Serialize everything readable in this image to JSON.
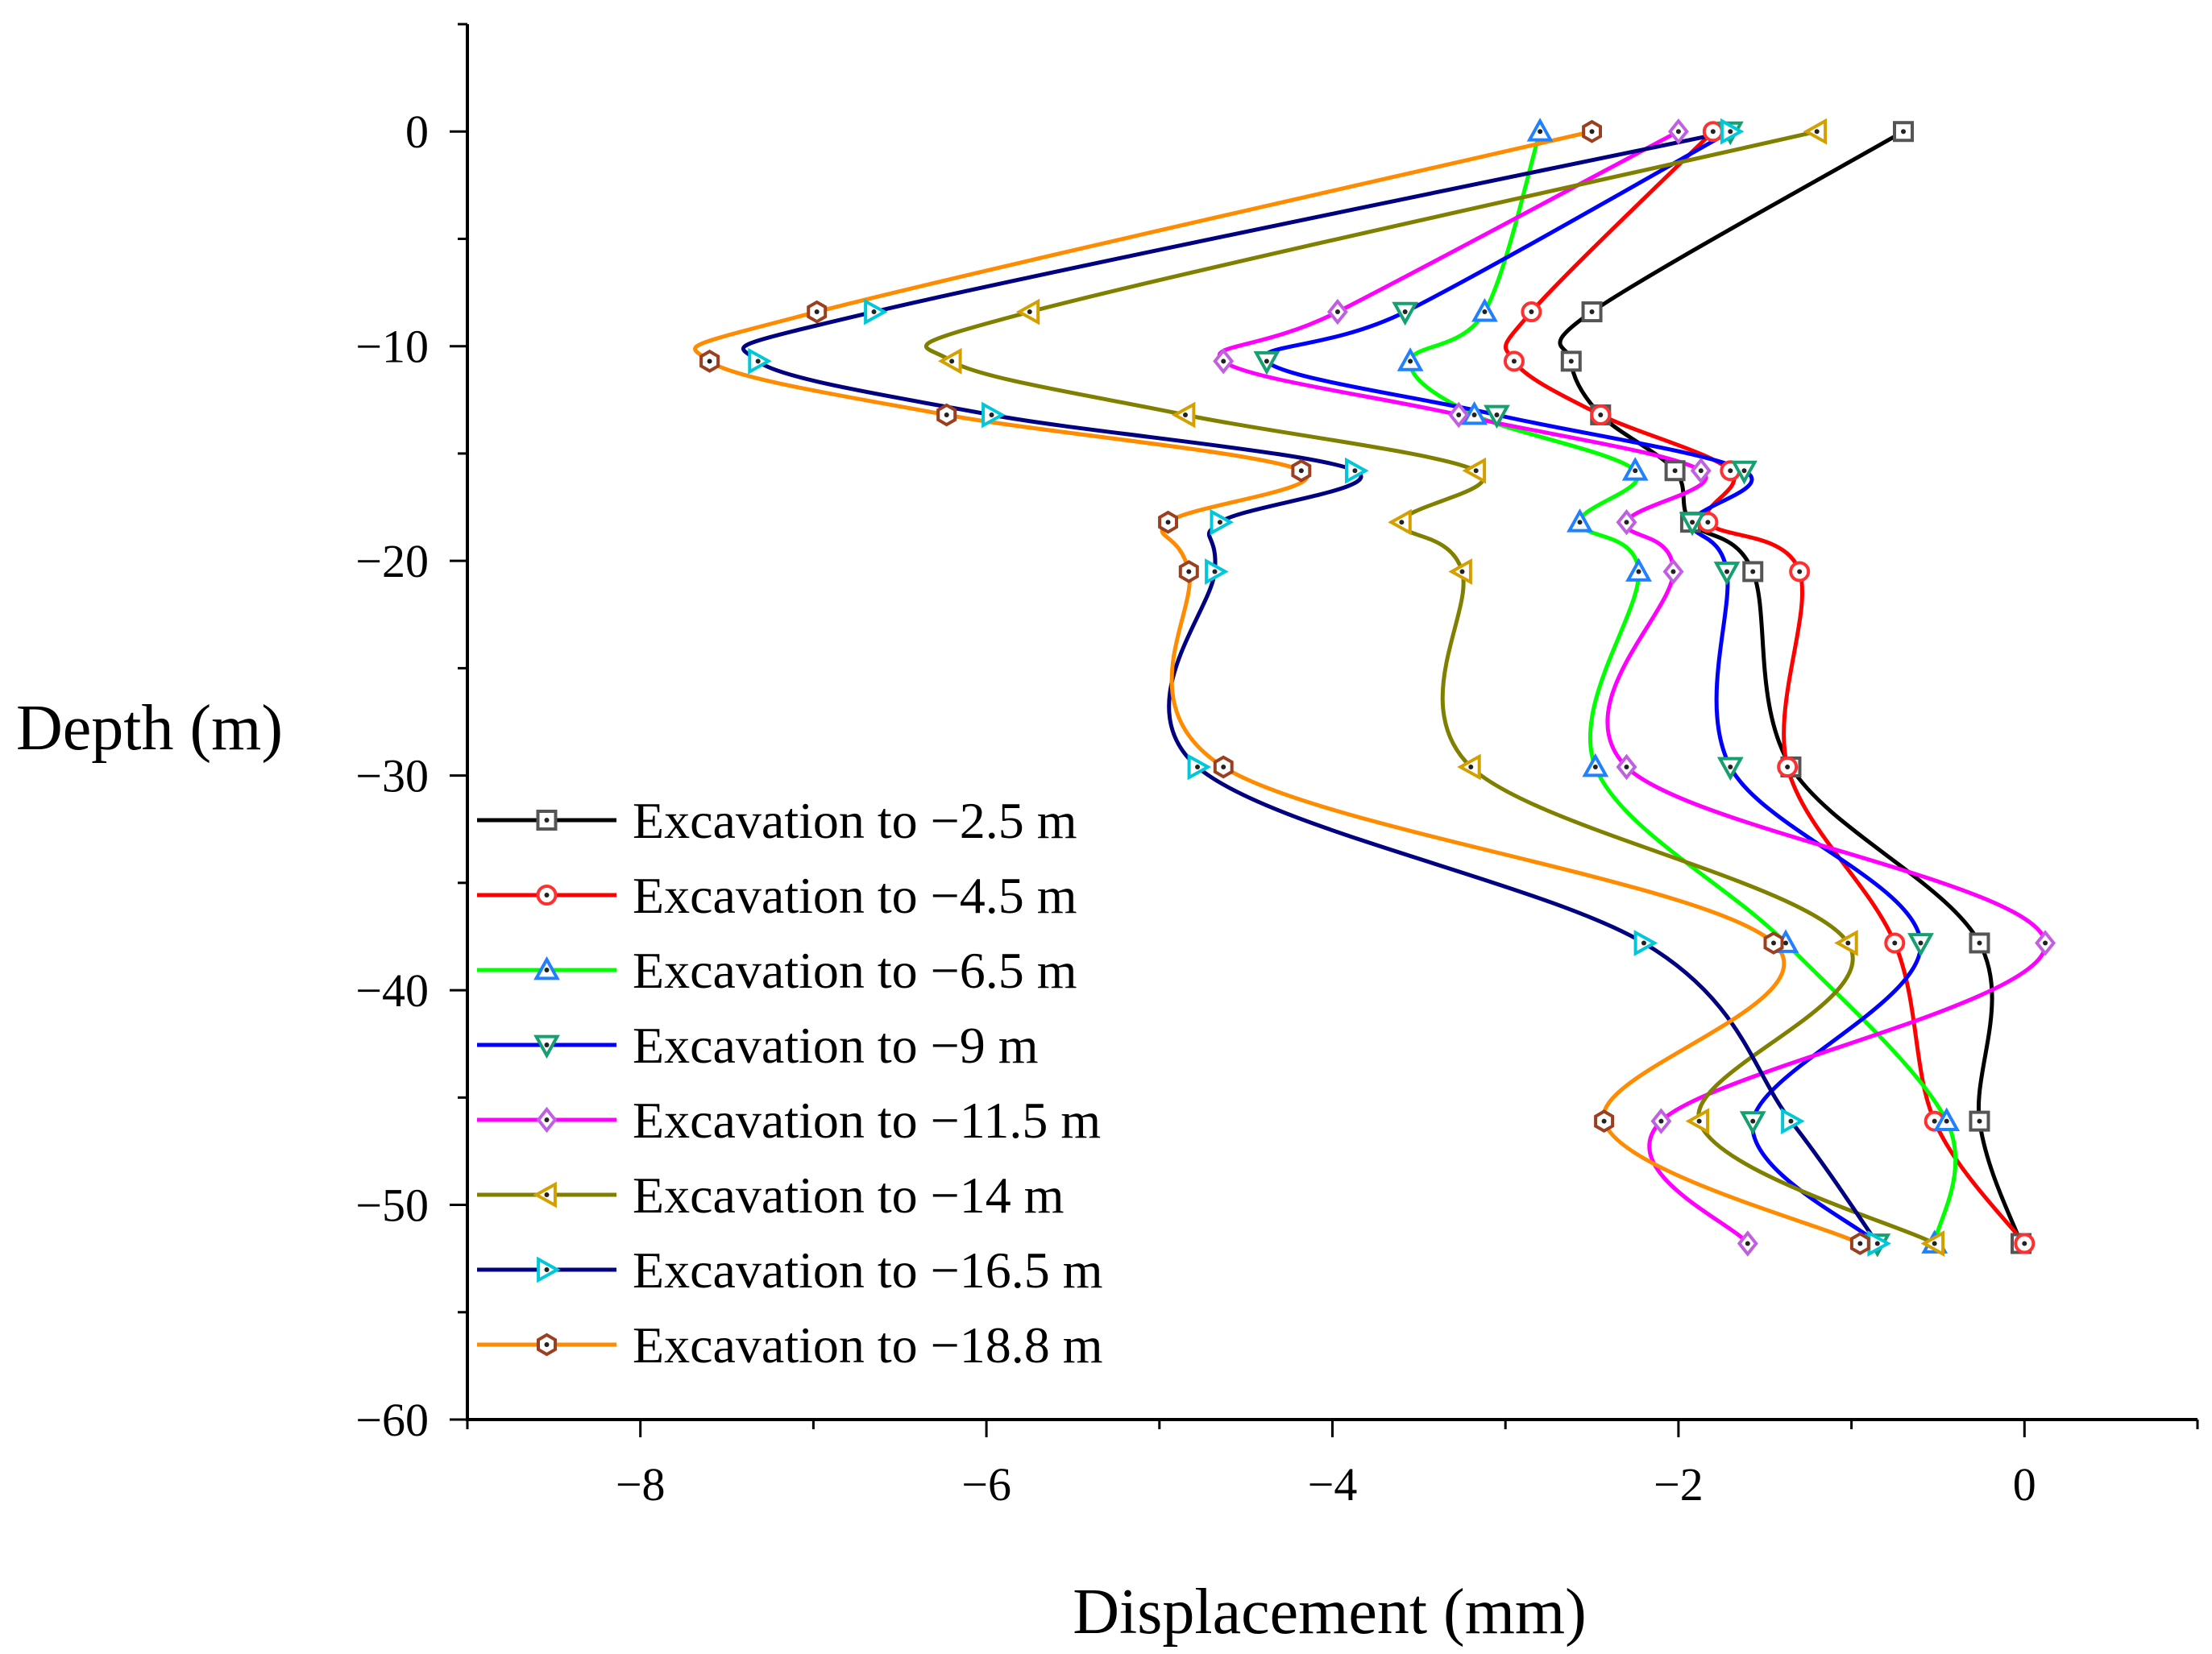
{
  "chart_data": {
    "type": "line",
    "title": "",
    "xlabel": "Displacement (mm)",
    "ylabel": "Depth (m)",
    "xlim": [
      -9,
      1
    ],
    "ylim": [
      -60,
      5
    ],
    "xticks": [
      -8,
      -6,
      -4,
      -2,
      0
    ],
    "yticks": [
      0,
      -10,
      -20,
      -30,
      -40,
      -50,
      -60
    ],
    "xtick_labels": [
      "−8",
      "−6",
      "−4",
      "−2",
      "0"
    ],
    "ytick_labels": [
      "0",
      "−10",
      "−20",
      "−30",
      "−40",
      "−50",
      "−60"
    ],
    "grid": false,
    "legend_position": "bottom-left",
    "depths": [
      0,
      -8.4,
      -10.7,
      -13.2,
      -15.8,
      -18.2,
      -20.5,
      -29.6,
      -37.8,
      -46.1,
      -51.8
    ],
    "series": [
      {
        "name": "Excavation to −2.5 m",
        "color": "#000000",
        "marker": "square",
        "marker_color": "#555555",
        "x": [
          -0.7,
          -2.5,
          -2.62,
          -2.45,
          -2.02,
          -1.93,
          -1.57,
          -1.35,
          -0.26,
          -0.26,
          -0.02
        ]
      },
      {
        "name": "Excavation to −4.5 m",
        "color": "#ff0000",
        "marker": "circle",
        "marker_color": "#ff3030",
        "x": [
          -1.8,
          -2.85,
          -2.95,
          -2.45,
          -1.7,
          -1.83,
          -1.3,
          -1.37,
          -0.75,
          -0.52,
          0.0
        ]
      },
      {
        "name": "Excavation to −6.5 m",
        "color": "#00ff00",
        "marker": "triangle-up",
        "marker_color": "#2080ff",
        "x": [
          -2.8,
          -3.12,
          -3.55,
          -3.18,
          -2.25,
          -2.57,
          -2.23,
          -2.48,
          -1.38,
          -0.45,
          -0.52
        ]
      },
      {
        "name": "Excavation to −9 m",
        "color": "#0000ff",
        "marker": "triangle-down",
        "marker_color": "#14a070",
        "x": [
          -1.7,
          -3.58,
          -4.38,
          -3.05,
          -1.62,
          -1.92,
          -1.72,
          -1.7,
          -0.6,
          -1.57,
          -0.85
        ]
      },
      {
        "name": "Excavation to −11.5 m",
        "color": "#ff00ff",
        "marker": "diamond",
        "marker_color": "#c060e0",
        "x": [
          -2.0,
          -3.97,
          -4.63,
          -3.27,
          -1.87,
          -2.3,
          -2.03,
          -2.3,
          0.12,
          -2.1,
          -1.6
        ]
      },
      {
        "name": "Excavation to −14 m",
        "color": "#808000",
        "marker": "triangle-left",
        "marker_color": "#d4a000",
        "x": [
          -1.2,
          -5.75,
          -6.2,
          -4.85,
          -3.17,
          -3.6,
          -3.25,
          -3.2,
          -1.02,
          -1.88,
          -0.52
        ]
      },
      {
        "name": "Excavation to −16.5 m",
        "color": "#000080",
        "marker": "triangle-right",
        "marker_color": "#00c8d8",
        "x": [
          -1.7,
          -6.65,
          -7.32,
          -5.97,
          -3.87,
          -4.65,
          -4.68,
          -4.78,
          -2.2,
          -1.35,
          -0.85
        ]
      },
      {
        "name": "Excavation to −18.8 m",
        "color": "#ff8c00",
        "marker": "hexagon",
        "marker_color": "#9a4020",
        "x": [
          -2.5,
          -6.98,
          -7.6,
          -6.23,
          -4.18,
          -4.95,
          -4.83,
          -4.63,
          -1.45,
          -2.43,
          -0.95
        ]
      }
    ]
  }
}
